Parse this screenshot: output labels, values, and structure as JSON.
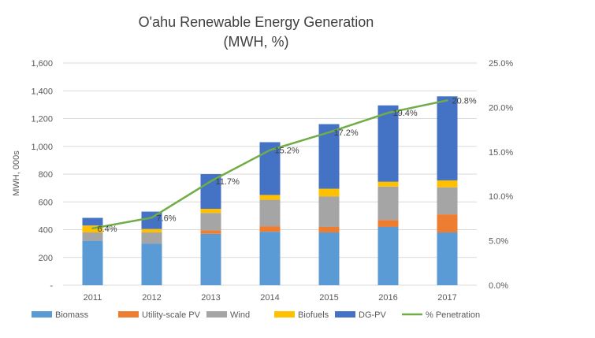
{
  "chart_data": {
    "type": "bar",
    "stacked": true,
    "title": "O'ahu Renewable Energy Generation",
    "subtitle": "(MWH, %)",
    "ylabel": "MWH, 000s",
    "xlabel": "",
    "categories": [
      "2011",
      "2012",
      "2013",
      "2014",
      "2015",
      "2016",
      "2017"
    ],
    "ylim": [
      0,
      1600
    ],
    "y_ticks": [
      "-",
      "200",
      "400",
      "600",
      "800",
      "1,000",
      "1,200",
      "1,400",
      "1,600"
    ],
    "y2lim": [
      0,
      25
    ],
    "y2_ticks": [
      "0.0%",
      "5.0%",
      "10.0%",
      "15.0%",
      "20.0%",
      "25.0%"
    ],
    "grid": true,
    "legend_position": "bottom",
    "series": [
      {
        "name": "Biomass",
        "color": "#5B9BD5",
        "values": [
          320,
          300,
          370,
          385,
          380,
          420,
          380
        ]
      },
      {
        "name": "Utility-scale PV",
        "color": "#ED7D31",
        "values": [
          0,
          0,
          25,
          40,
          40,
          50,
          130
        ]
      },
      {
        "name": "Wind",
        "color": "#A5A5A5",
        "values": [
          60,
          80,
          125,
          190,
          220,
          240,
          195
        ]
      },
      {
        "name": "Biofuels",
        "color": "#FFC000",
        "values": [
          50,
          25,
          30,
          35,
          55,
          35,
          50
        ]
      },
      {
        "name": "DG-PV",
        "color": "#4472C4",
        "values": [
          55,
          125,
          250,
          380,
          465,
          550,
          605
        ]
      }
    ],
    "line_series": {
      "name": "% Penetration",
      "color": "#70AD47",
      "axis": "secondary",
      "values": [
        6.4,
        7.6,
        11.7,
        15.2,
        17.2,
        19.4,
        20.8
      ],
      "labels": [
        "6.4%",
        "7.6%",
        "11.7%",
        "15.2%",
        "17.2%",
        "19.4%",
        "20.8%"
      ]
    }
  }
}
